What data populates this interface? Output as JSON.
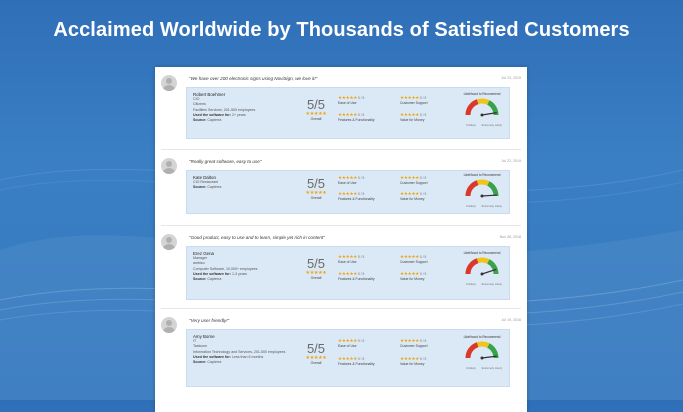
{
  "headline": "Acclaimed Worldwide by Thousands of Satisfied Customers",
  "colors": {
    "background": "#3579bf",
    "stars": "#f0a30a",
    "gauge_red": "#d9382b",
    "gauge_yellow": "#f0c419",
    "gauge_green": "#3aa34a"
  },
  "labels": {
    "overall": "Overall",
    "ease_of_use": "Ease of Use",
    "customer_support": "Customer Support",
    "features": "Features & Functionality",
    "value": "Value for Money",
    "gauge_title": "Likelihood to Recommend",
    "gauge_low": "Unlikely",
    "gauge_high": "Extremely Likely"
  },
  "reviews": [
    {
      "quote": "\"We have over 200 electronic signs using NoviSign, we love it!\"",
      "date": "Jul 23, 2019",
      "name": "Robert Boehmer",
      "line1": "CIO",
      "line2": "Citizens",
      "line3": "Facilities Services, 201-500 employees",
      "used_label": "Used the software for:",
      "used_value": "2+ years",
      "source_label": "Source:",
      "source_value": "Capterra",
      "score": "5/5",
      "ease": "5 / 5",
      "support": "5 / 5",
      "features": "5 / 5",
      "value": "5 / 5",
      "recommend": 0.95
    },
    {
      "quote": "\"Really great software, easy to use\"",
      "date": "Jul 22, 2019",
      "name": "Kate Dalton",
      "line1": "CIO Restaurant",
      "source_label": "Source:",
      "source_value": "Capterra",
      "score": "5/5",
      "ease": "5 / 5",
      "support": "5 / 5",
      "features": "5 / 5",
      "value": "5 / 5",
      "recommend": 0.98
    },
    {
      "quote": "\"Good product, easy to use and to learn, simple yet rich in content\"",
      "date": "Nov 28, 2018",
      "name": "Erez Gena",
      "line1": "Manager",
      "line2": "ambisu",
      "line3": "Computer Software, 10,000+ employees",
      "used_label": "Used the software for:",
      "used_value": "1-3 years",
      "source_label": "Source:",
      "source_value": "Capterra",
      "score": "5/5",
      "ease": "5 / 5",
      "support": "5 / 5",
      "features": "5 / 5",
      "value": "5 / 5",
      "recommend": 0.9
    },
    {
      "quote": "\"Very user friendly!\"",
      "date": "Jul 19, 2016",
      "name": "Amy Borne",
      "line1": "IT",
      "line2": "Taskcom",
      "line3": "Information Technology and Services, 201-500 employees",
      "used_label": "Used the software for:",
      "used_value": "Less than 6 months",
      "source_label": "Source:",
      "source_value": "Capterra",
      "score": "5/5",
      "ease": "5 / 5",
      "support": "5 / 5",
      "features": "5 / 5",
      "value": "5 / 5",
      "recommend": 0.96
    }
  ]
}
